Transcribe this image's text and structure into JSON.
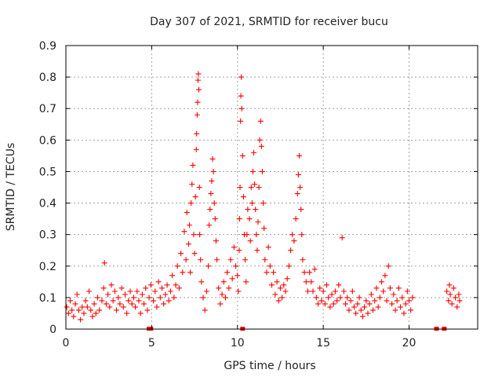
{
  "chart_data": {
    "type": "scatter",
    "title": "Day 307 of 2021, SRMTID for receiver bucu",
    "xlabel": "GPS time / hours",
    "ylabel": "SRMTID / TECUs",
    "xlim": [
      0,
      24
    ],
    "ylim": [
      0,
      0.9
    ],
    "xticks": [
      "0",
      "5",
      "10",
      "15",
      "20"
    ],
    "xtick_values": [
      0,
      5,
      10,
      15,
      20
    ],
    "yticks": [
      "0",
      "0.1",
      "0.2",
      "0.3",
      "0.4",
      "0.5",
      "0.6",
      "0.7",
      "0.8",
      "0.9"
    ],
    "ytick_values": [
      0,
      0.1,
      0.2,
      0.3,
      0.4,
      0.5,
      0.6,
      0.7,
      0.8,
      0.9
    ],
    "grid": true,
    "marker": "+",
    "color": "#ff0000",
    "series": [
      {
        "name": "SRMTID",
        "points": [
          [
            0.05,
            0.07
          ],
          [
            0.15,
            0.05
          ],
          [
            0.25,
            0.09
          ],
          [
            0.35,
            0.06
          ],
          [
            0.45,
            0.04
          ],
          [
            0.55,
            0.08
          ],
          [
            0.65,
            0.11
          ],
          [
            0.75,
            0.06
          ],
          [
            0.85,
            0.03
          ],
          [
            0.95,
            0.07
          ],
          [
            1.05,
            0.05
          ],
          [
            1.15,
            0.09
          ],
          [
            1.25,
            0.07
          ],
          [
            1.35,
            0.12
          ],
          [
            1.45,
            0.06
          ],
          [
            1.55,
            0.04
          ],
          [
            1.65,
            0.08
          ],
          [
            1.75,
            0.05
          ],
          [
            1.85,
            0.1
          ],
          [
            1.95,
            0.06
          ],
          [
            2.1,
            0.09
          ],
          [
            2.2,
            0.13
          ],
          [
            2.25,
            0.21
          ],
          [
            2.35,
            0.08
          ],
          [
            2.45,
            0.11
          ],
          [
            2.55,
            0.07
          ],
          [
            2.65,
            0.14
          ],
          [
            2.75,
            0.09
          ],
          [
            2.85,
            0.12
          ],
          [
            2.95,
            0.06
          ],
          [
            3.05,
            0.1
          ],
          [
            3.15,
            0.08
          ],
          [
            3.25,
            0.13
          ],
          [
            3.35,
            0.07
          ],
          [
            3.45,
            0.11
          ],
          [
            3.55,
            0.05
          ],
          [
            3.65,
            0.09
          ],
          [
            3.75,
            0.12
          ],
          [
            3.85,
            0.08
          ],
          [
            3.95,
            0.1
          ],
          [
            4.05,
            0.07
          ],
          [
            4.15,
            0.12
          ],
          [
            4.25,
            0.09
          ],
          [
            4.35,
            0.05
          ],
          [
            4.45,
            0.11
          ],
          [
            4.55,
            0.08
          ],
          [
            4.65,
            0.13
          ],
          [
            4.75,
            0.06
          ],
          [
            4.85,
            0.1
          ],
          [
            4.95,
            0.14
          ],
          [
            5.1,
            0.09
          ],
          [
            5.2,
            0.12
          ],
          [
            5.3,
            0.07
          ],
          [
            5.4,
            0.15
          ],
          [
            5.5,
            0.1
          ],
          [
            5.6,
            0.13
          ],
          [
            5.7,
            0.08
          ],
          [
            5.8,
            0.11
          ],
          [
            5.9,
            0.14
          ],
          [
            6.0,
            0.09
          ],
          [
            6.1,
            0.12
          ],
          [
            6.2,
            0.17
          ],
          [
            6.3,
            0.1
          ],
          [
            6.4,
            0.14
          ],
          [
            6.5,
            0.2
          ],
          [
            6.6,
            0.13
          ],
          [
            6.7,
            0.24
          ],
          [
            6.8,
            0.18
          ],
          [
            6.9,
            0.31
          ],
          [
            7.0,
            0.22
          ],
          [
            7.05,
            0.37
          ],
          [
            7.15,
            0.27
          ],
          [
            7.2,
            0.33
          ],
          [
            7.25,
            0.18
          ],
          [
            7.3,
            0.4
          ],
          [
            7.35,
            0.46
          ],
          [
            7.4,
            0.52
          ],
          [
            7.45,
            0.3
          ],
          [
            7.5,
            0.24
          ],
          [
            7.55,
            0.42
          ],
          [
            7.6,
            0.57
          ],
          [
            7.62,
            0.62
          ],
          [
            7.65,
            0.68
          ],
          [
            7.68,
            0.72
          ],
          [
            7.7,
            0.79
          ],
          [
            7.72,
            0.81
          ],
          [
            7.75,
            0.76
          ],
          [
            7.78,
            0.45
          ],
          [
            7.8,
            0.3
          ],
          [
            7.85,
            0.22
          ],
          [
            7.9,
            0.15
          ],
          [
            8.0,
            0.1
          ],
          [
            8.1,
            0.06
          ],
          [
            8.2,
            0.12
          ],
          [
            8.3,
            0.2
          ],
          [
            8.35,
            0.33
          ],
          [
            8.4,
            0.38
          ],
          [
            8.45,
            0.43
          ],
          [
            8.5,
            0.47
          ],
          [
            8.55,
            0.54
          ],
          [
            8.6,
            0.5
          ],
          [
            8.65,
            0.4
          ],
          [
            8.7,
            0.35
          ],
          [
            8.75,
            0.28
          ],
          [
            8.8,
            0.22
          ],
          [
            8.9,
            0.13
          ],
          [
            9.0,
            0.08
          ],
          [
            9.1,
            0.11
          ],
          [
            9.2,
            0.15
          ],
          [
            9.3,
            0.1
          ],
          [
            9.4,
            0.18
          ],
          [
            9.5,
            0.13
          ],
          [
            9.6,
            0.22
          ],
          [
            9.7,
            0.16
          ],
          [
            9.8,
            0.26
          ],
          [
            9.9,
            0.2
          ],
          [
            10.0,
            0.17
          ],
          [
            10.05,
            0.12
          ],
          [
            10.1,
            0.25
          ],
          [
            10.12,
            0.35
          ],
          [
            10.15,
            0.45
          ],
          [
            10.18,
            0.66
          ],
          [
            10.2,
            0.74
          ],
          [
            10.22,
            0.8
          ],
          [
            10.25,
            0.7
          ],
          [
            10.3,
            0.55
          ],
          [
            10.35,
            0.42
          ],
          [
            10.4,
            0.3
          ],
          [
            10.45,
            0.22
          ],
          [
            10.5,
            0.15
          ],
          [
            10.55,
            0.3
          ],
          [
            10.6,
            0.38
          ],
          [
            10.7,
            0.35
          ],
          [
            10.75,
            0.28
          ],
          [
            10.8,
            0.45
          ],
          [
            10.85,
            0.4
          ],
          [
            10.9,
            0.5
          ],
          [
            10.95,
            0.56
          ],
          [
            11.0,
            0.46
          ],
          [
            11.05,
            0.38
          ],
          [
            11.1,
            0.3
          ],
          [
            11.15,
            0.25
          ],
          [
            11.2,
            0.34
          ],
          [
            11.25,
            0.45
          ],
          [
            11.3,
            0.6
          ],
          [
            11.35,
            0.66
          ],
          [
            11.4,
            0.58
          ],
          [
            11.45,
            0.5
          ],
          [
            11.5,
            0.4
          ],
          [
            11.55,
            0.32
          ],
          [
            11.6,
            0.22
          ],
          [
            11.7,
            0.18
          ],
          [
            11.8,
            0.26
          ],
          [
            11.9,
            0.2
          ],
          [
            12.0,
            0.14
          ],
          [
            12.1,
            0.18
          ],
          [
            12.2,
            0.11
          ],
          [
            12.3,
            0.15
          ],
          [
            12.4,
            0.09
          ],
          [
            12.5,
            0.13
          ],
          [
            12.6,
            0.1
          ],
          [
            12.7,
            0.14
          ],
          [
            12.8,
            0.12
          ],
          [
            12.9,
            0.16
          ],
          [
            13.0,
            0.2
          ],
          [
            13.1,
            0.25
          ],
          [
            13.2,
            0.3
          ],
          [
            13.3,
            0.28
          ],
          [
            13.4,
            0.35
          ],
          [
            13.5,
            0.43
          ],
          [
            13.55,
            0.49
          ],
          [
            13.6,
            0.55
          ],
          [
            13.65,
            0.45
          ],
          [
            13.7,
            0.38
          ],
          [
            13.75,
            0.3
          ],
          [
            13.8,
            0.22
          ],
          [
            13.9,
            0.18
          ],
          [
            14.0,
            0.15
          ],
          [
            14.1,
            0.12
          ],
          [
            14.2,
            0.18
          ],
          [
            14.3,
            0.15
          ],
          [
            14.4,
            0.12
          ],
          [
            14.5,
            0.19
          ],
          [
            14.6,
            0.1
          ],
          [
            14.7,
            0.08
          ],
          [
            14.8,
            0.13
          ],
          [
            14.9,
            0.09
          ],
          [
            15.0,
            0.12
          ],
          [
            15.1,
            0.08
          ],
          [
            15.2,
            0.14
          ],
          [
            15.3,
            0.1
          ],
          [
            15.4,
            0.07
          ],
          [
            15.5,
            0.11
          ],
          [
            15.6,
            0.08
          ],
          [
            15.7,
            0.12
          ],
          [
            15.8,
            0.09
          ],
          [
            15.9,
            0.14
          ],
          [
            16.0,
            0.1
          ],
          [
            16.1,
            0.29
          ],
          [
            16.2,
            0.12
          ],
          [
            16.3,
            0.08
          ],
          [
            16.4,
            0.1
          ],
          [
            16.5,
            0.06
          ],
          [
            16.6,
            0.09
          ],
          [
            16.7,
            0.12
          ],
          [
            16.8,
            0.07
          ],
          [
            16.9,
            0.05
          ],
          [
            17.0,
            0.08
          ],
          [
            17.1,
            0.1
          ],
          [
            17.2,
            0.06
          ],
          [
            17.3,
            0.04
          ],
          [
            17.4,
            0.07
          ],
          [
            17.5,
            0.09
          ],
          [
            17.6,
            0.05
          ],
          [
            17.7,
            0.08
          ],
          [
            17.8,
            0.11
          ],
          [
            17.9,
            0.06
          ],
          [
            18.0,
            0.09
          ],
          [
            18.1,
            0.13
          ],
          [
            18.2,
            0.07
          ],
          [
            18.3,
            0.1
          ],
          [
            18.4,
            0.15
          ],
          [
            18.5,
            0.12
          ],
          [
            18.6,
            0.17
          ],
          [
            18.7,
            0.09
          ],
          [
            18.8,
            0.2
          ],
          [
            18.9,
            0.13
          ],
          [
            19.0,
            0.08
          ],
          [
            19.1,
            0.11
          ],
          [
            19.2,
            0.06
          ],
          [
            19.3,
            0.09
          ],
          [
            19.4,
            0.13
          ],
          [
            19.5,
            0.07
          ],
          [
            19.6,
            0.1
          ],
          [
            19.7,
            0.05
          ],
          [
            19.8,
            0.08
          ],
          [
            19.9,
            0.12
          ],
          [
            20.0,
            0.09
          ],
          [
            20.1,
            0.06
          ],
          [
            20.2,
            0.1
          ],
          [
            22.2,
            0.12
          ],
          [
            22.3,
            0.09
          ],
          [
            22.35,
            0.14
          ],
          [
            22.4,
            0.11
          ],
          [
            22.5,
            0.08
          ],
          [
            22.6,
            0.13
          ],
          [
            22.7,
            0.1
          ],
          [
            22.8,
            0.07
          ],
          [
            22.9,
            0.11
          ],
          [
            22.95,
            0.09
          ]
        ]
      }
    ],
    "zero_points_x": [
      4.85,
      4.95,
      10.3,
      21.6,
      22.05
    ]
  }
}
